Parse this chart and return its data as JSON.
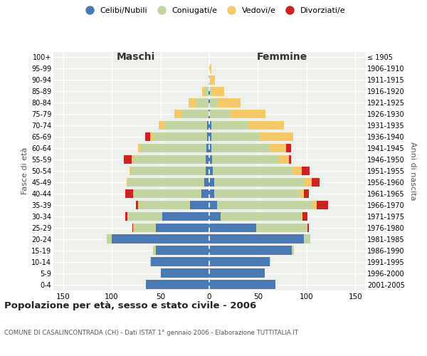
{
  "age_groups": [
    "100+",
    "95-99",
    "90-94",
    "85-89",
    "80-84",
    "75-79",
    "70-74",
    "65-69",
    "60-64",
    "55-59",
    "50-54",
    "45-49",
    "40-44",
    "35-39",
    "30-34",
    "25-29",
    "20-24",
    "15-19",
    "10-14",
    "5-9",
    "0-4"
  ],
  "birth_years": [
    "≤ 1905",
    "1906-1910",
    "1911-1915",
    "1916-1920",
    "1921-1925",
    "1926-1930",
    "1931-1935",
    "1936-1940",
    "1941-1945",
    "1946-1950",
    "1951-1955",
    "1956-1960",
    "1961-1965",
    "1966-1970",
    "1971-1975",
    "1976-1980",
    "1981-1985",
    "1986-1990",
    "1991-1995",
    "1996-2000",
    "2001-2005"
  ],
  "maschi": {
    "celibi": [
      0,
      0,
      0,
      1,
      1,
      1,
      2,
      2,
      3,
      4,
      4,
      5,
      8,
      20,
      48,
      55,
      100,
      55,
      60,
      50,
      65
    ],
    "coniugati": [
      0,
      0,
      1,
      4,
      13,
      27,
      43,
      55,
      67,
      74,
      77,
      79,
      70,
      52,
      35,
      22,
      5,
      3,
      1,
      0,
      0
    ],
    "vedovi": [
      0,
      0,
      0,
      2,
      7,
      8,
      7,
      4,
      3,
      2,
      1,
      1,
      0,
      1,
      1,
      1,
      0,
      0,
      0,
      0,
      0
    ],
    "divorziati": [
      0,
      0,
      0,
      0,
      0,
      0,
      0,
      5,
      0,
      8,
      0,
      0,
      8,
      2,
      2,
      1,
      0,
      0,
      0,
      0,
      0
    ]
  },
  "femmine": {
    "nubili": [
      0,
      0,
      0,
      1,
      1,
      1,
      2,
      2,
      2,
      3,
      4,
      5,
      5,
      8,
      12,
      48,
      97,
      85,
      62,
      57,
      68
    ],
    "coniugate": [
      0,
      0,
      1,
      2,
      7,
      20,
      38,
      50,
      60,
      68,
      82,
      93,
      88,
      98,
      82,
      52,
      7,
      2,
      1,
      0,
      0
    ],
    "vedove": [
      0,
      2,
      5,
      12,
      24,
      37,
      37,
      34,
      17,
      11,
      9,
      7,
      4,
      4,
      2,
      1,
      0,
      0,
      0,
      0,
      0
    ],
    "divorziate": [
      0,
      0,
      0,
      0,
      0,
      0,
      0,
      0,
      5,
      2,
      8,
      8,
      5,
      12,
      5,
      1,
      0,
      0,
      0,
      0,
      0
    ]
  },
  "colors": {
    "celibi": "#4a7ab5",
    "coniugati": "#c2d4a0",
    "vedovi": "#f5c96a",
    "divorziati": "#cc2222"
  },
  "bg_color": "#eef0eb",
  "xlim": 160,
  "xticks": [
    -150,
    -100,
    -50,
    0,
    50,
    100,
    150
  ],
  "title": "Popolazione per età, sesso e stato civile - 2006",
  "subtitle": "COMUNE DI CASALINCONTRADA (CH) - Dati ISTAT 1° gennaio 2006 - Elaborazione TUTTITALIA.IT",
  "ylabel_left": "Fasce di età",
  "ylabel_right": "Anni di nascita",
  "header_maschi": "Maschi",
  "header_femmine": "Femmine",
  "legend_labels": [
    "Celibi/Nubili",
    "Coniugati/e",
    "Vedovi/e",
    "Divorziati/e"
  ]
}
